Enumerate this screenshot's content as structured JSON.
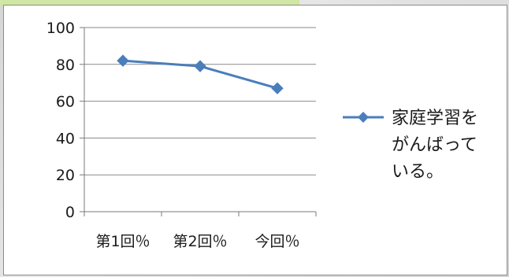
{
  "chart_data": {
    "type": "line",
    "categories": [
      "第1回％",
      "第2回％",
      "今回％"
    ],
    "series": [
      {
        "name": "家庭学習をがんばっている。",
        "values": [
          82,
          79,
          67
        ],
        "color": "#4a7ebb",
        "marker": "diamond"
      }
    ],
    "ylim": [
      0,
      100
    ],
    "yticks": [
      0,
      20,
      40,
      60,
      80,
      100
    ],
    "grid": true,
    "legend_position": "right",
    "legend_lines": [
      "家庭学習を",
      "がんばって",
      "いる。"
    ]
  }
}
